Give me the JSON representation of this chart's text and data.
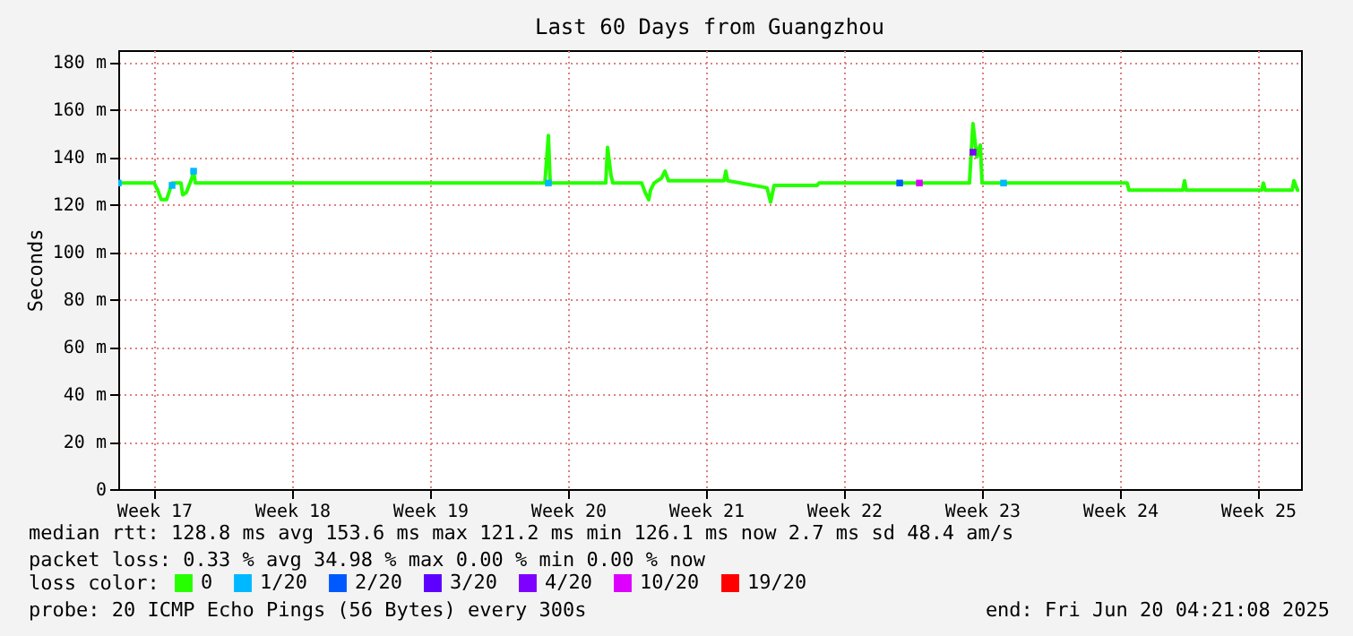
{
  "chart_data": {
    "type": "line",
    "title": "Last 60 Days from Guangzhou",
    "ylabel": "Seconds",
    "legend_title": "loss color:",
    "legend": "bottom",
    "grid": true,
    "xlim": [
      "2025-04-21T04:21",
      "2025-06-20T04:21"
    ],
    "xticks": [
      {
        "value": "2025-04-23",
        "label": "Week 17"
      },
      {
        "value": "2025-04-30",
        "label": "Week 18"
      },
      {
        "value": "2025-05-07",
        "label": "Week 19"
      },
      {
        "value": "2025-05-14",
        "label": "Week 20"
      },
      {
        "value": "2025-05-21",
        "label": "Week 21"
      },
      {
        "value": "2025-05-28",
        "label": "Week 22"
      },
      {
        "value": "2025-06-04",
        "label": "Week 23"
      },
      {
        "value": "2025-06-11",
        "label": "Week 24"
      },
      {
        "value": "2025-06-18",
        "label": "Week 25"
      }
    ],
    "ylim": [
      0,
      185
    ],
    "yticks": [
      0,
      {
        "value": 20,
        "label": "20 m"
      },
      {
        "value": 40,
        "label": "40 m"
      },
      {
        "value": 60,
        "label": "60 m"
      },
      {
        "value": 80,
        "label": "80 m"
      },
      {
        "value": 100,
        "label": "100 m"
      },
      {
        "value": 120,
        "label": "120 m"
      },
      {
        "value": 140,
        "label": "140 m"
      },
      {
        "value": 160,
        "label": "160 m"
      },
      {
        "value": 180,
        "label": "180 m"
      }
    ],
    "series": [
      {
        "name": "0",
        "color": "#26ff00",
        "x": [
          "2025-04-21T04:21",
          "2025-04-23T00:00",
          "2025-04-23T04:21",
          "2025-04-23T08:40",
          "2025-04-23T15:09",
          "2025-04-23T21:52",
          "2025-04-24T08:40",
          "2025-04-24T10:50",
          "2025-04-24T15:09",
          "2025-04-24T19:43",
          "2025-04-24T21:52",
          "2025-04-25T00:02",
          "2025-04-25T02:11",
          "2025-05-12T19:43",
          "2025-05-13T00:02",
          "2025-05-13T02:11",
          "2025-05-15T21:52",
          "2025-05-16T00:02",
          "2025-05-16T04:21",
          "2025-05-16T06:31",
          "2025-05-17T17:33",
          "2025-05-17T21:52",
          "2025-05-18T02:11",
          "2025-05-18T04:21",
          "2025-05-18T08:40",
          "2025-05-18T17:33",
          "2025-05-18T21:52",
          "2025-05-19T02:11",
          "2025-05-21T21:52",
          "2025-05-22T00:02",
          "2025-05-22T02:11",
          "2025-05-24T02:11",
          "2025-05-24T06:31",
          "2025-05-24T10:50",
          "2025-05-25T10:50",
          "2025-05-26T15:09",
          "2025-05-26T17:33",
          "2025-06-03T08:40",
          "2025-06-03T10:50",
          "2025-06-03T12:59",
          "2025-06-03T17:33",
          "2025-06-03T21:52",
          "2025-06-04T00:02",
          "2025-06-11T08:40",
          "2025-06-11T10:50",
          "2025-06-14T04:21",
          "2025-06-14T06:31",
          "2025-06-14T08:40",
          "2025-06-18T04:21",
          "2025-06-18T06:31",
          "2025-06-18T08:40",
          "2025-06-19T17:33",
          "2025-06-19T19:43",
          "2025-06-20T00:02",
          "2025-06-20T02:11"
        ],
        "values": [
          129,
          129,
          126,
          122,
          122,
          129,
          129,
          124,
          125,
          129,
          131,
          134,
          129,
          129,
          149,
          129,
          129,
          144,
          132,
          129,
          129,
          125,
          122,
          126,
          129,
          131,
          134,
          130,
          130,
          134,
          130,
          127,
          121,
          128,
          128,
          128,
          129,
          129,
          142,
          154,
          140,
          145,
          129,
          129,
          126,
          126,
          130,
          126,
          126,
          129,
          126,
          126,
          130,
          126,
          126
        ]
      },
      {
        "name": "1/20",
        "type": "scatter",
        "color": "#00b8ff",
        "x": [
          "2025-04-21T04:21",
          "2025-04-23T21:52",
          "2025-04-25T00:02",
          "2025-05-13T00:02",
          "2025-06-05T02:11"
        ],
        "values": [
          129,
          128,
          134,
          129,
          129
        ]
      },
      {
        "name": "2/20",
        "type": "scatter",
        "color": "#0059ff",
        "x": [
          "2025-05-30T19:43"
        ],
        "values": [
          129
        ]
      },
      {
        "name": "3/20",
        "type": "scatter",
        "color": "#5e00ff"
      },
      {
        "name": "4/20",
        "type": "scatter",
        "color": "#7e00ff",
        "x": [
          "2025-06-03T12:59"
        ],
        "values": [
          142
        ]
      },
      {
        "name": "10/20",
        "type": "scatter",
        "color": "#dd00ff",
        "x": [
          "2025-05-31T19:43"
        ],
        "values": [
          129
        ]
      },
      {
        "name": "19/20",
        "type": "scatter",
        "color": "#ff0000"
      }
    ],
    "annotations": [
      "median rtt:  128.8 ms avg  153.6 ms max  121.2 ms min  126.1 ms now  2.7 ms sd  48.4   am/s",
      "packet loss: 0.33 % avg  34.98 % max  0.00 % min  0.00 % now",
      "probe:       20 ICMP Echo Pings (56 Bytes) every 300s",
      "end: Fri Jun 20 04:21:08 2025"
    ]
  }
}
